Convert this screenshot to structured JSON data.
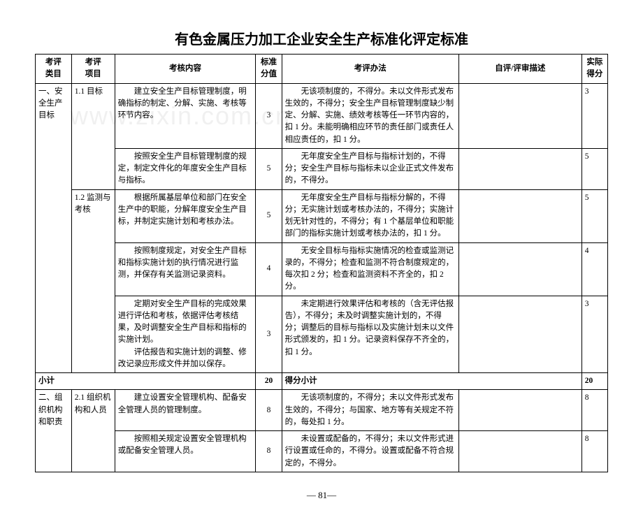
{
  "title": "有色金属压力加工企业安全生产标准化评定标准",
  "watermark": "www.zixin.com.cn",
  "headers": {
    "category": "考评\n类目",
    "item": "考评\n项目",
    "content": "考核内容",
    "standard": "标准\n分值",
    "method": "考评办法",
    "desc": "自评/评审描述",
    "actual": "实际\n得分"
  },
  "rows": [
    {
      "category": "一、安全生产目标",
      "item": "1.1  目标",
      "content": "　　建立安全生产目标管理制度，明确指标的制定、分解、实施、考核等环节内容。",
      "standard": "3",
      "method": "　　无该项制度的，不得分。未以文件形式发布生效的，不得分；安全生产目标管理制度缺少制定、分解、实施、绩效考核等任一环节内容的，扣 1 分。未能明确相应环节的责任部门或责任人相应责任的，扣 1 分。",
      "actual": "3"
    },
    {
      "content": "　　按照安全生产目标管理制度的规定，制定文件化的年度安全生产目标与指标。",
      "standard": "5",
      "method": "　　无年度安全生产目标与指标计划的，不得分；安全生产目标与指标未以企业正式文件发布的，不得分。",
      "actual": "5"
    },
    {
      "item": "1.2  监测与考核",
      "content": "　　根据所属基层单位和部门在安全生产中的职能，分解年度安全生产目标，并制定实施计划和考核办法。",
      "standard": "5",
      "method": "　　无年度安全生产目标与指标分解的，不得分；无实施计划或考核办法的，不得分；实施计划无针对性的，不得分；有 1 个基层单位和职能部门的指标实施计划或考核办法的，扣 1 分。",
      "actual": "5"
    },
    {
      "content": "　　按照制度规定，对安全生产目标和指标实施计划的执行情况进行监测，并保存有关监测记录资料。",
      "standard": "4",
      "method": "　　无安全目标与指标实施情况的检查或监测记录的，不得分；检查和监测不符合制度规定的，每次扣 2 分；检查和监测资料不齐全的，扣 2 分。",
      "actual": "4"
    },
    {
      "content": "　　定期对安全生产目标的完成效果进行评估和考核，依据评估考核结果，及时调整安全生产目标和指标的实施计划。\n　　评估报告和实施计划的调整、修改记录应形成文件并加以保存。",
      "standard": "3",
      "method": "　　未定期进行效果评估和考核的（含无评估报告），不得分；未及时调整实施计划的，不得分；调整后的目标与指标以及实施计划未以文件形式颁发的，扣 1 分。记录资料保存不齐全的，扣 1 分。",
      "actual": "3"
    }
  ],
  "subtotal": {
    "label": "小计",
    "standard": "20",
    "method_label": "得分小计",
    "actual": "20"
  },
  "rows2": [
    {
      "category": "二、组织机构和职责",
      "item": "2.1  组织机构和人员",
      "content": "　　建立设置安全管理机构、配备安全管理人员的管理制度。",
      "standard": "8",
      "method": "　　无该项制度的，不得分；未以文件形式发布生效的，不得分；与国家、地方等有关规定不符的，每处扣 1 分。",
      "actual": "8"
    },
    {
      "content": "　　按照相关规定设置安全管理机构或配备安全管理人员。",
      "standard": "8",
      "method": "　　未设置或配备的，不得分；未以文件形式进行设置或任命的，不得分。设置或配备不符合规定的，不得分。",
      "actual": "8"
    }
  ],
  "page": "— 81—"
}
